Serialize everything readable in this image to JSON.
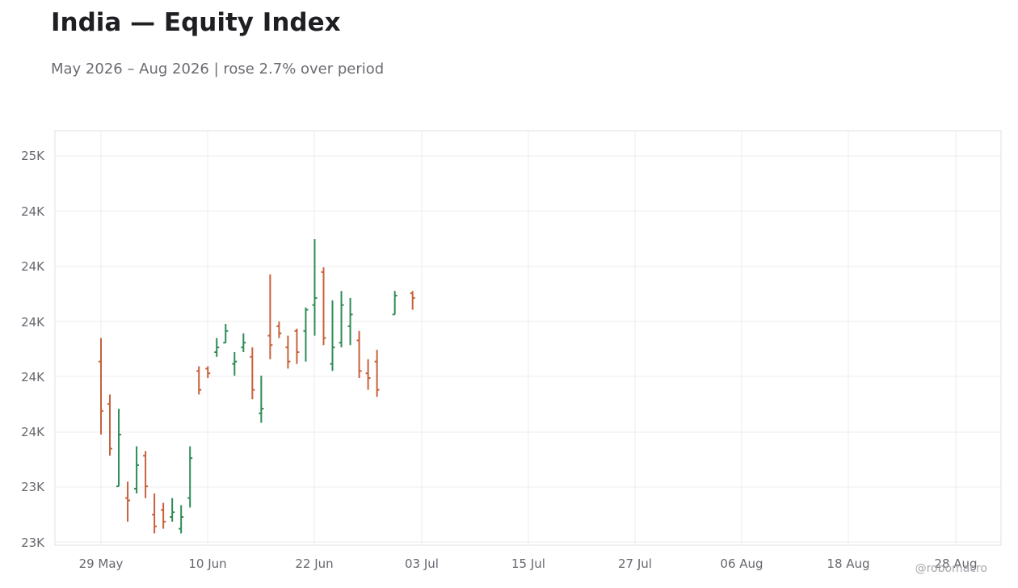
{
  "title": "India — Equity Index",
  "subtitle": "May 2026 – Aug 2026 | rose 2.7% over period",
  "watermark": "@robomacro",
  "colors": {
    "up": "#2e8b57",
    "down": "#c8603c",
    "grid": "#ececec",
    "frame": "#e0e0e0"
  },
  "chart_data": {
    "type": "ohlc",
    "x_ticks": [
      "29 May",
      "10 Jun",
      "22 Jun",
      "03 Jul",
      "15 Jul",
      "27 Jul",
      "06 Aug",
      "18 Aug",
      "28 Aug"
    ],
    "y_ticks": [
      "23K",
      "23K",
      "24K",
      "24K",
      "24K",
      "24K",
      "24K",
      "25K"
    ],
    "ylim": [
      22.98,
      24.74
    ],
    "grid": true,
    "candles": [
      {
        "date": "2026-05-29",
        "o": 23.76,
        "h": 23.86,
        "l": 23.45,
        "c": 23.55
      },
      {
        "date": "2026-05-30",
        "o": 23.58,
        "h": 23.62,
        "l": 23.36,
        "c": 23.39
      },
      {
        "date": "2026-05-31",
        "o": 23.23,
        "h": 23.56,
        "l": 23.23,
        "c": 23.45
      },
      {
        "date": "2026-06-01",
        "o": 23.18,
        "h": 23.25,
        "l": 23.08,
        "c": 23.17
      },
      {
        "date": "2026-06-02",
        "o": 23.22,
        "h": 23.4,
        "l": 23.2,
        "c": 23.32
      },
      {
        "date": "2026-06-03",
        "o": 23.36,
        "h": 23.38,
        "l": 23.18,
        "c": 23.23
      },
      {
        "date": "2026-06-04",
        "o": 23.11,
        "h": 23.2,
        "l": 23.03,
        "c": 23.06
      },
      {
        "date": "2026-06-05",
        "o": 23.13,
        "h": 23.16,
        "l": 23.05,
        "c": 23.08
      },
      {
        "date": "2026-06-06",
        "o": 23.1,
        "h": 23.18,
        "l": 23.08,
        "c": 23.12
      },
      {
        "date": "2026-06-07",
        "o": 23.05,
        "h": 23.15,
        "l": 23.03,
        "c": 23.1
      },
      {
        "date": "2026-06-08",
        "o": 23.18,
        "h": 23.4,
        "l": 23.14,
        "c": 23.35
      },
      {
        "date": "2026-06-09",
        "o": 23.72,
        "h": 23.74,
        "l": 23.62,
        "c": 23.64
      },
      {
        "date": "2026-06-10",
        "o": 23.73,
        "h": 23.74,
        "l": 23.69,
        "c": 23.71
      },
      {
        "date": "2026-06-11",
        "o": 23.8,
        "h": 23.86,
        "l": 23.78,
        "c": 23.82
      },
      {
        "date": "2026-06-12",
        "o": 23.84,
        "h": 23.92,
        "l": 23.84,
        "c": 23.89
      },
      {
        "date": "2026-06-13",
        "o": 23.75,
        "h": 23.8,
        "l": 23.7,
        "c": 23.76
      },
      {
        "date": "2026-06-14",
        "o": 23.82,
        "h": 23.88,
        "l": 23.8,
        "c": 23.84
      },
      {
        "date": "2026-06-15",
        "o": 23.78,
        "h": 23.82,
        "l": 23.6,
        "c": 23.64
      },
      {
        "date": "2026-06-16",
        "o": 23.54,
        "h": 23.7,
        "l": 23.5,
        "c": 23.56
      },
      {
        "date": "2026-06-17",
        "o": 23.87,
        "h": 24.13,
        "l": 23.77,
        "c": 23.83
      },
      {
        "date": "2026-06-18",
        "o": 23.91,
        "h": 23.93,
        "l": 23.86,
        "c": 23.88
      },
      {
        "date": "2026-06-19",
        "o": 23.82,
        "h": 23.87,
        "l": 23.73,
        "c": 23.76
      },
      {
        "date": "2026-06-20",
        "o": 23.89,
        "h": 23.9,
        "l": 23.75,
        "c": 23.8
      },
      {
        "date": "2026-06-21",
        "o": 23.89,
        "h": 23.99,
        "l": 23.76,
        "c": 23.98
      },
      {
        "date": "2026-06-22",
        "o": 24.0,
        "h": 24.28,
        "l": 23.87,
        "c": 24.03
      },
      {
        "date": "2026-06-23",
        "o": 24.14,
        "h": 24.16,
        "l": 23.83,
        "c": 23.86
      },
      {
        "date": "2026-06-24",
        "o": 23.75,
        "h": 24.02,
        "l": 23.72,
        "c": 23.82
      },
      {
        "date": "2026-06-25",
        "o": 23.84,
        "h": 24.06,
        "l": 23.82,
        "c": 24.0
      },
      {
        "date": "2026-06-26",
        "o": 23.91,
        "h": 24.03,
        "l": 23.83,
        "c": 23.96
      },
      {
        "date": "2026-06-27",
        "o": 23.85,
        "h": 23.89,
        "l": 23.69,
        "c": 23.72
      },
      {
        "date": "2026-06-28",
        "o": 23.71,
        "h": 23.77,
        "l": 23.64,
        "c": 23.69
      },
      {
        "date": "2026-06-29",
        "o": 23.76,
        "h": 23.81,
        "l": 23.61,
        "c": 23.64
      },
      {
        "date": "2026-07-01",
        "o": 23.96,
        "h": 24.06,
        "l": 23.96,
        "c": 24.04
      },
      {
        "date": "2026-07-03",
        "o": 24.05,
        "h": 24.06,
        "l": 23.98,
        "c": 24.03
      }
    ]
  }
}
